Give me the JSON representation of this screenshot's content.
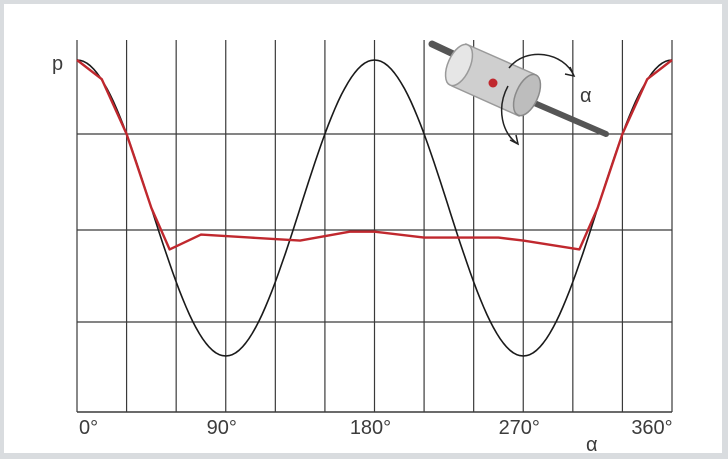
{
  "chart_data": {
    "type": "line",
    "xlabel": "α",
    "ylabel": "p",
    "xlim": [
      0,
      360
    ],
    "x_ticks": [
      {
        "value": 0,
        "label": "0°"
      },
      {
        "value": 90,
        "label": "90°"
      },
      {
        "value": 180,
        "label": "180°"
      },
      {
        "value": 270,
        "label": "270°"
      },
      {
        "value": 360,
        "label": "360°"
      }
    ],
    "grid": true,
    "series": [
      {
        "color": "#1a1a1a",
        "x": [
          0,
          15,
          30,
          45,
          60,
          75,
          90,
          105,
          120,
          135,
          150,
          165,
          180,
          195,
          210,
          225,
          240,
          255,
          270,
          285,
          300,
          315,
          330,
          345,
          360
        ],
        "y": [
          1.0,
          0.87,
          0.5,
          0.0,
          -0.5,
          -0.87,
          -1.0,
          -0.87,
          -0.5,
          0.0,
          0.5,
          0.87,
          1.0,
          0.87,
          0.5,
          0.0,
          -0.5,
          -0.87,
          -1.0,
          -0.87,
          -0.5,
          0.0,
          0.5,
          0.87,
          1.0
        ]
      },
      {
        "color": "#c0282e",
        "x": [
          0,
          15,
          30,
          45,
          56,
          75,
          105,
          135,
          165,
          180,
          210,
          240,
          255,
          270,
          304,
          315,
          330,
          345,
          360
        ],
        "y": [
          1.0,
          0.87,
          0.5,
          0.0,
          -0.28,
          -0.18,
          -0.2,
          -0.22,
          -0.16,
          -0.16,
          -0.2,
          -0.2,
          -0.2,
          -0.22,
          -0.28,
          0.0,
          0.5,
          0.87,
          1.0
        ]
      }
    ],
    "inset": {
      "label": "α",
      "accent": "#c0282e"
    }
  }
}
